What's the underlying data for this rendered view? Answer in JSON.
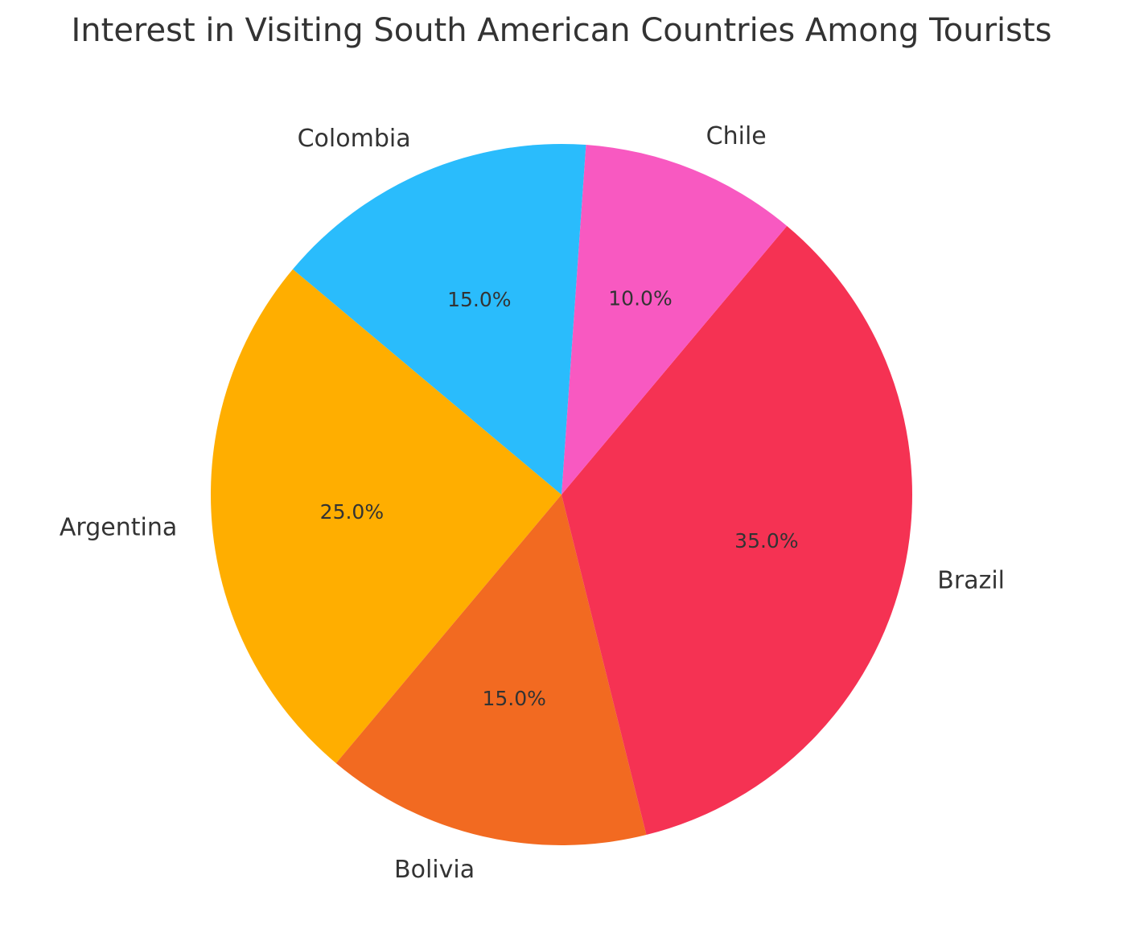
{
  "chart_data": {
    "type": "pie",
    "title": "Interest in Visiting South American Countries Among Tourists",
    "categories": [
      "Argentina",
      "Bolivia",
      "Brazil",
      "Chile",
      "Colombia"
    ],
    "values": [
      25,
      15,
      35,
      10,
      15
    ],
    "value_labels": [
      "25.0%",
      "15.0%",
      "35.0%",
      "10.0%",
      "15.0%"
    ],
    "colors": [
      "#FFAE00",
      "#F26A21",
      "#F53253",
      "#F859C1",
      "#2ABCFC"
    ],
    "startangle": 140
  }
}
